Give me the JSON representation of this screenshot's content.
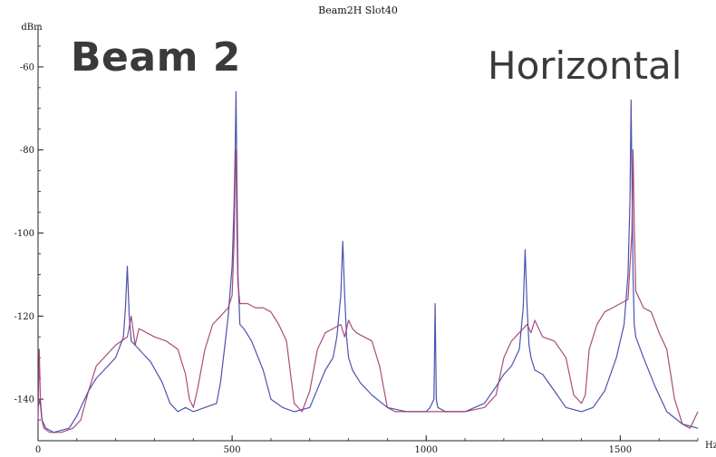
{
  "chart_data": {
    "type": "line",
    "title": "Beam2H Slot40",
    "annotations": {
      "left": "Beam 2",
      "right": "Horizontal"
    },
    "xlabel": "Hz",
    "ylabel": "dBm",
    "xlim": [
      0,
      1700
    ],
    "ylim": [
      -150,
      -50
    ],
    "x_ticks": [
      0,
      500,
      1000,
      1500
    ],
    "y_ticks": [
      -140,
      -120,
      -100,
      -80,
      -60
    ],
    "x_ticks_minor_step": 100,
    "y_ticks_minor_step": 5,
    "grid": false,
    "colors": {
      "blue": "#3b3fa6",
      "red": "#9e3a6e",
      "axis": "#222222"
    },
    "series": [
      {
        "color": "#3b3fa6",
        "x": [
          0,
          5,
          10,
          20,
          40,
          80,
          100,
          130,
          150,
          180,
          200,
          220,
          225,
          230,
          235,
          240,
          250,
          270,
          290,
          320,
          340,
          360,
          380,
          400,
          430,
          460,
          470,
          480,
          490,
          500,
          505,
          508,
          510,
          512,
          515,
          520,
          530,
          550,
          580,
          600,
          630,
          660,
          700,
          740,
          760,
          770,
          780,
          785,
          790,
          795,
          800,
          810,
          830,
          860,
          900,
          950,
          1000,
          1010,
          1020,
          1023,
          1026,
          1030,
          1050,
          1100,
          1150,
          1180,
          1200,
          1220,
          1240,
          1250,
          1255,
          1260,
          1265,
          1270,
          1280,
          1300,
          1330,
          1360,
          1400,
          1430,
          1460,
          1490,
          1510,
          1520,
          1525,
          1528,
          1530,
          1533,
          1536,
          1540,
          1560,
          1590,
          1620,
          1660,
          1700
        ],
        "y": [
          -142,
          -140,
          -145,
          -147,
          -148,
          -147,
          -144,
          -138,
          -135,
          -132,
          -130,
          -125,
          -118,
          -108,
          -120,
          -126,
          -127,
          -129,
          -131,
          -136,
          -141,
          -143,
          -142,
          -143,
          -142,
          -141,
          -136,
          -128,
          -120,
          -108,
          -93,
          -80,
          -66,
          -85,
          -110,
          -122,
          -123,
          -126,
          -133,
          -140,
          -142,
          -143,
          -142,
          -133,
          -130,
          -125,
          -115,
          -102,
          -115,
          -125,
          -130,
          -133,
          -136,
          -139,
          -142,
          -143,
          -143,
          -142,
          -140,
          -117,
          -140,
          -142,
          -143,
          -143,
          -141,
          -137,
          -134,
          -132,
          -128,
          -118,
          -104,
          -118,
          -127,
          -130,
          -133,
          -134,
          -138,
          -142,
          -143,
          -142,
          -138,
          -130,
          -122,
          -110,
          -92,
          -68,
          -85,
          -110,
          -122,
          -125,
          -130,
          -137,
          -143,
          -146,
          -147
        ]
      },
      {
        "color": "#9e3a6e",
        "x": [
          0,
          3,
          6,
          10,
          15,
          30,
          60,
          90,
          110,
          130,
          150,
          170,
          200,
          230,
          240,
          250,
          260,
          280,
          300,
          330,
          360,
          380,
          390,
          400,
          410,
          430,
          450,
          470,
          490,
          500,
          505,
          508,
          510,
          512,
          515,
          520,
          540,
          560,
          580,
          600,
          620,
          640,
          660,
          680,
          700,
          720,
          740,
          760,
          780,
          790,
          800,
          810,
          820,
          840,
          860,
          880,
          900,
          920,
          950,
          1000,
          1050,
          1100,
          1150,
          1180,
          1200,
          1220,
          1240,
          1260,
          1270,
          1280,
          1300,
          1330,
          1360,
          1380,
          1400,
          1410,
          1420,
          1440,
          1460,
          1480,
          1500,
          1520,
          1530,
          1533,
          1536,
          1540,
          1560,
          1580,
          1600,
          1620,
          1640,
          1660,
          1680,
          1700
        ],
        "y": [
          -145,
          -128,
          -140,
          -145,
          -147,
          -148,
          -148,
          -147,
          -145,
          -138,
          -132,
          -130,
          -127,
          -125,
          -120,
          -127,
          -123,
          -124,
          -125,
          -126,
          -128,
          -134,
          -140,
          -142,
          -138,
          -128,
          -122,
          -120,
          -118,
          -115,
          -102,
          -84,
          -80,
          -98,
          -112,
          -117,
          -117,
          -118,
          -118,
          -119,
          -122,
          -126,
          -141,
          -143,
          -138,
          -128,
          -124,
          -123,
          -122,
          -125,
          -121,
          -123,
          -124,
          -125,
          -126,
          -132,
          -142,
          -143,
          -143,
          -143,
          -143,
          -143,
          -142,
          -139,
          -130,
          -126,
          -124,
          -122,
          -124,
          -121,
          -125,
          -126,
          -130,
          -139,
          -141,
          -139,
          -128,
          -122,
          -119,
          -118,
          -117,
          -116,
          -100,
          -80,
          -98,
          -114,
          -118,
          -119,
          -124,
          -128,
          -140,
          -146,
          -147,
          -143
        ]
      }
    ]
  }
}
